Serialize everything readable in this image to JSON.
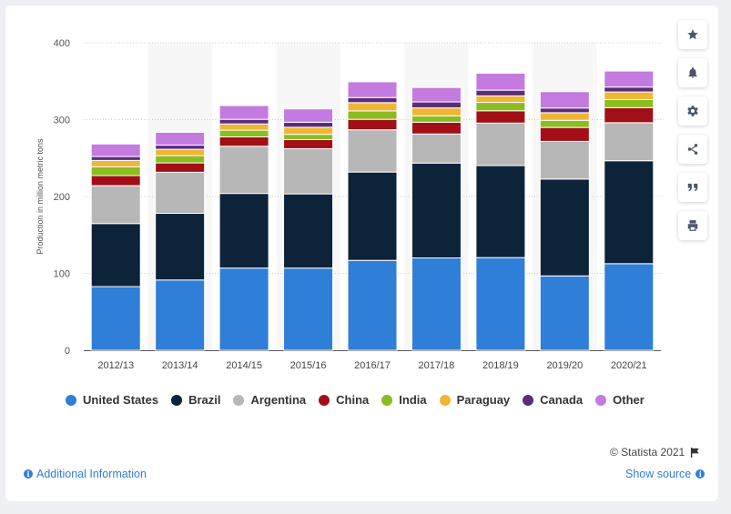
{
  "colors": {
    "United States": "#2f7ed8",
    "Brazil": "#0d233a",
    "Argentina": "#b7b7b7",
    "China": "#a30f16",
    "India": "#8bbc21",
    "Paraguay": "#efb634",
    "Canada": "#5b2c7b",
    "Other": "#c37be0"
  },
  "toolbar": [
    {
      "name": "star-icon"
    },
    {
      "name": "bell-icon"
    },
    {
      "name": "gear-icon"
    },
    {
      "name": "share-icon"
    },
    {
      "name": "quote-icon"
    },
    {
      "name": "print-icon"
    }
  ],
  "footer": {
    "copyright": "© Statista 2021",
    "additional_info": "Additional Information",
    "show_source": "Show source"
  },
  "chart_data": {
    "type": "bar",
    "stacked": true,
    "title": "",
    "xlabel": "",
    "ylabel": "Production in million metric tons",
    "ylim": [
      0,
      400
    ],
    "yticks": [
      0,
      100,
      200,
      300,
      400
    ],
    "grid": true,
    "legend_position": "bottom",
    "categories": [
      "2012/13",
      "2013/14",
      "2014/15",
      "2015/16",
      "2016/17",
      "2017/18",
      "2018/19",
      "2019/20",
      "2020/21"
    ],
    "series": [
      {
        "name": "United States",
        "values": [
          82.8,
          91.4,
          106.9,
          106.9,
          116.9,
          120.1,
          120.5,
          96.7,
          112.6
        ]
      },
      {
        "name": "Brazil",
        "values": [
          82.0,
          86.7,
          97.1,
          96.5,
          114.9,
          123.4,
          119.7,
          126.0,
          133.9
        ]
      },
      {
        "name": "Argentina",
        "values": [
          49.3,
          53.4,
          61.4,
          58.8,
          55.0,
          37.8,
          55.3,
          49.0,
          49.5
        ]
      },
      {
        "name": "China",
        "values": [
          13.1,
          12.2,
          12.2,
          11.8,
          13.6,
          15.3,
          16.0,
          18.1,
          19.6
        ]
      },
      {
        "name": "India",
        "values": [
          11.5,
          9.5,
          8.7,
          6.9,
          11.0,
          8.4,
          10.9,
          9.3,
          10.5
        ]
      },
      {
        "name": "Paraguay",
        "values": [
          8.2,
          8.2,
          8.1,
          9.2,
          10.7,
          10.3,
          8.5,
          9.9,
          9.9
        ]
      },
      {
        "name": "Canada",
        "values": [
          5.1,
          5.4,
          6.0,
          6.5,
          6.6,
          7.7,
          7.4,
          6.1,
          6.4
        ]
      },
      {
        "name": "Other",
        "values": [
          16.3,
          16.7,
          17.9,
          17.4,
          20.5,
          18.8,
          22.1,
          21.3,
          20.8
        ]
      }
    ]
  }
}
